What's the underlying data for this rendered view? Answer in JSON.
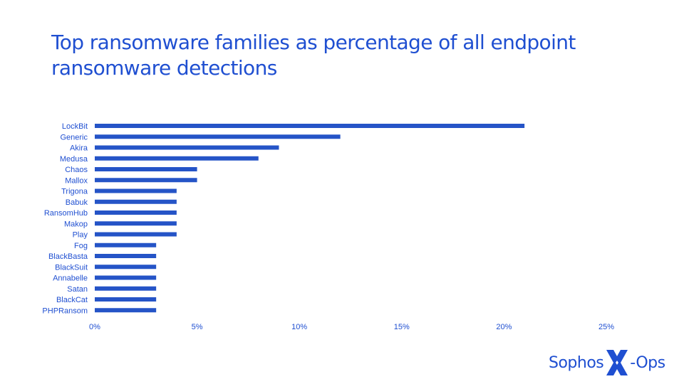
{
  "title": "Top ransomware families as percentage of all endpoint ransomware detections",
  "brand": {
    "text_left": "Sophos",
    "text_right": "-Ops",
    "color": "#1f4fd1"
  },
  "chart_data": {
    "type": "bar",
    "orientation": "horizontal",
    "title": "Top ransomware families as percentage of all endpoint ransomware detections",
    "xlabel": "",
    "ylabel": "",
    "categories": [
      "LockBit",
      "Generic",
      "Akira",
      "Medusa",
      "Chaos",
      "Mallox",
      "Trigona",
      "Babuk",
      "RansomHub",
      "Makop",
      "Play",
      "Fog",
      "BlackBasta",
      "BlackSuit",
      "Annabelle",
      "Satan",
      "BlackCat",
      "PHPRansom"
    ],
    "values": [
      21,
      12,
      9,
      8,
      5,
      5,
      4,
      4,
      4,
      4,
      4,
      3,
      3,
      3,
      3,
      3,
      3,
      3
    ],
    "xlim": [
      0,
      25
    ],
    "xticks": [
      0,
      5,
      10,
      15,
      20,
      25
    ],
    "xtick_labels": [
      "0%",
      "5%",
      "10%",
      "15%",
      "20%",
      "25%"
    ],
    "bar_color": "#2554c7",
    "grid": false,
    "legend": "none"
  }
}
